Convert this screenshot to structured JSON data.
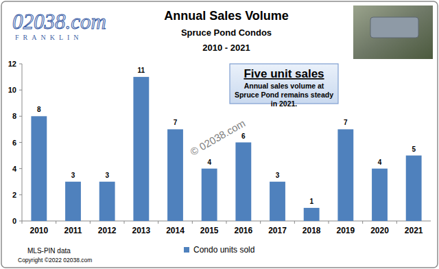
{
  "chart_data": {
    "type": "bar",
    "title": "Annual Sales Volume",
    "subtitle": "Spruce Pond Condos",
    "annotations": [
      "2010 - 2021",
      "Five unit sales",
      "Annual sales volume at Spruce Pond remains steady in 2021.",
      "© 02038.com",
      "MLS-PIN data",
      "Copyright ©2022 02038.com",
      "02038.com",
      "FRANKLIN"
    ],
    "categories": [
      "2010",
      "2011",
      "2012",
      "2013",
      "2014",
      "2015",
      "2016",
      "2017",
      "2018",
      "2019",
      "2020",
      "2021"
    ],
    "series": [
      {
        "name": "Condo units sold",
        "color": "#4f81bd",
        "values": [
          8,
          3,
          3,
          11,
          7,
          4,
          6,
          3,
          1,
          7,
          4,
          5
        ]
      }
    ],
    "ylim": [
      0,
      12
    ],
    "yticks": [
      0,
      2,
      4,
      6,
      8,
      10,
      12
    ],
    "grid": false,
    "legend": "bottom",
    "data_labels": true
  }
}
